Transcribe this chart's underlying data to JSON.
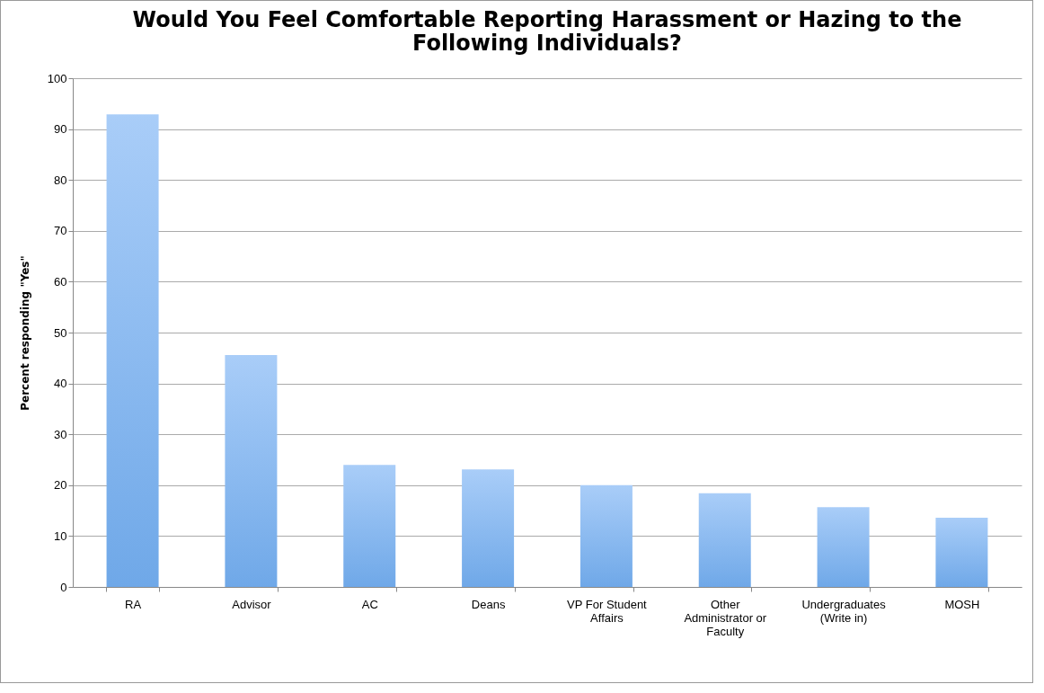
{
  "chart_data": {
    "type": "bar",
    "title": "Would You Feel Comfortable Reporting Harassment or Hazing to the Following Individuals?",
    "ylabel": "Percent responding \"Yes\"",
    "categories": [
      "RA",
      "Advisor",
      "AC",
      "Deans",
      "VP For Student Affairs",
      "Other Administrator or Faculty",
      "Undergraduates (Write in)",
      "MOSH"
    ],
    "values": [
      92.9,
      45.6,
      24.0,
      23.1,
      20.0,
      18.4,
      15.7,
      13.6
    ],
    "color": "#6fa8e8",
    "ylim": [
      0,
      100
    ],
    "yticks": [
      0,
      10,
      20,
      30,
      40,
      50,
      60,
      70,
      80,
      90,
      100
    ],
    "grid": "y"
  }
}
